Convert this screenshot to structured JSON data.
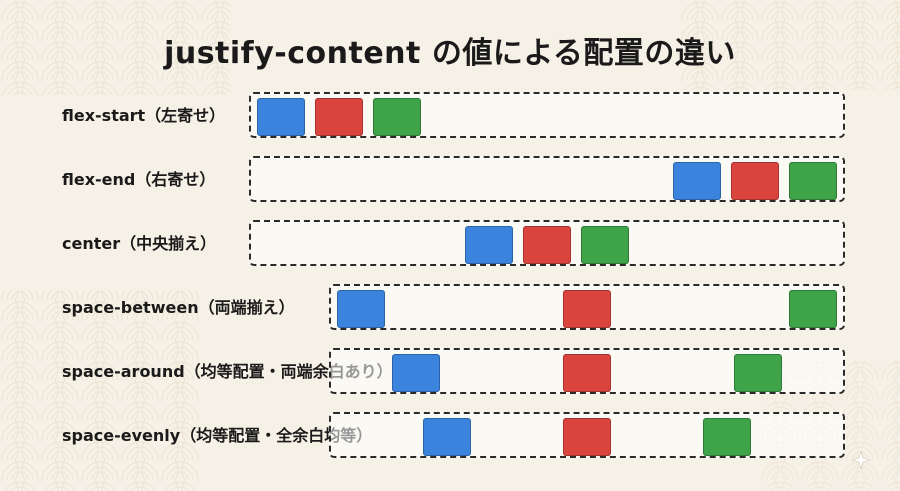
{
  "title": "justify-content の値による配置の違い",
  "colors": {
    "blue": "#3a84de",
    "red": "#d9443e",
    "green": "#3fa34a",
    "background": "#f6f1e6"
  },
  "rows": [
    {
      "value": "flex-start",
      "label": "flex-start（左寄せ）"
    },
    {
      "value": "flex-end",
      "label": "flex-end（右寄せ）"
    },
    {
      "value": "center",
      "label": "center（中央揃え）"
    },
    {
      "value": "space-between",
      "label": "space-between（両端揃え）"
    },
    {
      "value": "space-around",
      "label": "space-around（均等配置・両端余白あり）"
    },
    {
      "value": "space-evenly",
      "label": "space-evenly（均等配置・全余白均等）"
    }
  ],
  "icons": {
    "sparkle": "sparkle-icon"
  }
}
